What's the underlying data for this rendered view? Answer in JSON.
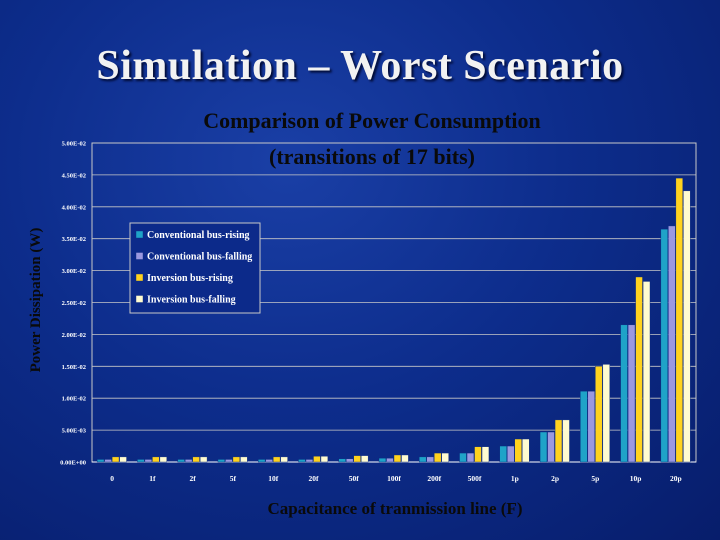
{
  "slide": {
    "title": "Simulation – Worst Scenario"
  },
  "chart_data": {
    "type": "bar",
    "title_line1": "Comparison of Power Consumption",
    "title_line2": "(transitions of 17 bits)",
    "xlabel": "Capacitance of tranmission line (F)",
    "ylabel": "Power Dissipation (W)",
    "categories": [
      "0",
      "1f",
      "2f",
      "5f",
      "10f",
      "20f",
      "50f",
      "100f",
      "200f",
      "500f",
      "1p",
      "2p",
      "5p",
      "10p",
      "20p"
    ],
    "yticks": [
      "0.00E+00",
      "5.00E-03",
      "1.00E-02",
      "1.50E-02",
      "2.00E-02",
      "2.50E-02",
      "3.00E-02",
      "3.50E-02",
      "4.00E-02",
      "4.50E-02",
      "5.00E-02"
    ],
    "ylim": [
      0,
      0.05
    ],
    "grid": true,
    "legend_position": "upper-left",
    "series": [
      {
        "name": "Conventional bus-rising",
        "color": "#1fa3c8",
        "values": [
          0.0004,
          0.0004,
          0.0004,
          0.0004,
          0.0004,
          0.0004,
          0.0005,
          0.0006,
          0.0008,
          0.0014,
          0.0025,
          0.0047,
          0.0111,
          0.0215,
          0.0365
        ]
      },
      {
        "name": "Conventional bus-falling",
        "color": "#9b98e0",
        "values": [
          0.0004,
          0.0004,
          0.0004,
          0.0004,
          0.0004,
          0.0004,
          0.0005,
          0.0006,
          0.0008,
          0.0014,
          0.0025,
          0.0047,
          0.0111,
          0.0215,
          0.037
        ]
      },
      {
        "name": "Inversion bus-rising",
        "color": "#ffd21e",
        "values": [
          0.0008,
          0.0008,
          0.0008,
          0.0008,
          0.0008,
          0.0009,
          0.001,
          0.0011,
          0.0014,
          0.0024,
          0.0036,
          0.0066,
          0.015,
          0.029,
          0.0445
        ]
      },
      {
        "name": "Inversion bus-falling",
        "color": "#fffbd0",
        "values": [
          0.0008,
          0.0008,
          0.0008,
          0.0008,
          0.0008,
          0.0009,
          0.001,
          0.0011,
          0.0014,
          0.0024,
          0.0036,
          0.0066,
          0.0153,
          0.0283,
          0.0425
        ]
      }
    ]
  }
}
